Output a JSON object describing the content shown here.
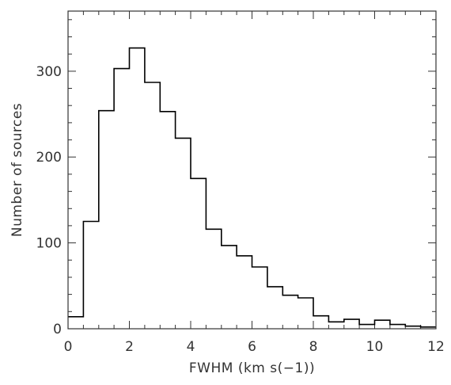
{
  "chart_data": {
    "type": "histogram",
    "title": "",
    "xlabel": "FWHM (km s$^{-1}$)",
    "xlabel_display": "FWHM (km s(−1))",
    "ylabel": "Number of sources",
    "xlim": [
      0,
      12
    ],
    "ylim": [
      0,
      370
    ],
    "grid": false,
    "bin_width": 0.5,
    "bin_edges": [
      0,
      0.5,
      1,
      1.5,
      2,
      2.5,
      3,
      3.5,
      4,
      4.5,
      5,
      5.5,
      6,
      6.5,
      7,
      7.5,
      8,
      8.5,
      9,
      9.5,
      10,
      10.5,
      11,
      11.5,
      12
    ],
    "values": [
      14,
      125,
      254,
      303,
      327,
      287,
      253,
      222,
      175,
      116,
      97,
      85,
      72,
      49,
      39,
      36,
      15,
      8,
      11,
      5,
      10,
      5,
      3,
      2
    ],
    "x_ticks": [
      0,
      2,
      4,
      6,
      8,
      10,
      12
    ],
    "x_tick_labels": [
      "0",
      "2",
      "4",
      "6",
      "8",
      "10",
      "12"
    ],
    "y_ticks": [
      0,
      100,
      200,
      300
    ],
    "y_tick_labels": [
      "0",
      "100",
      "200",
      "300"
    ],
    "line_color": "#000000",
    "axis_color": "#333333"
  }
}
